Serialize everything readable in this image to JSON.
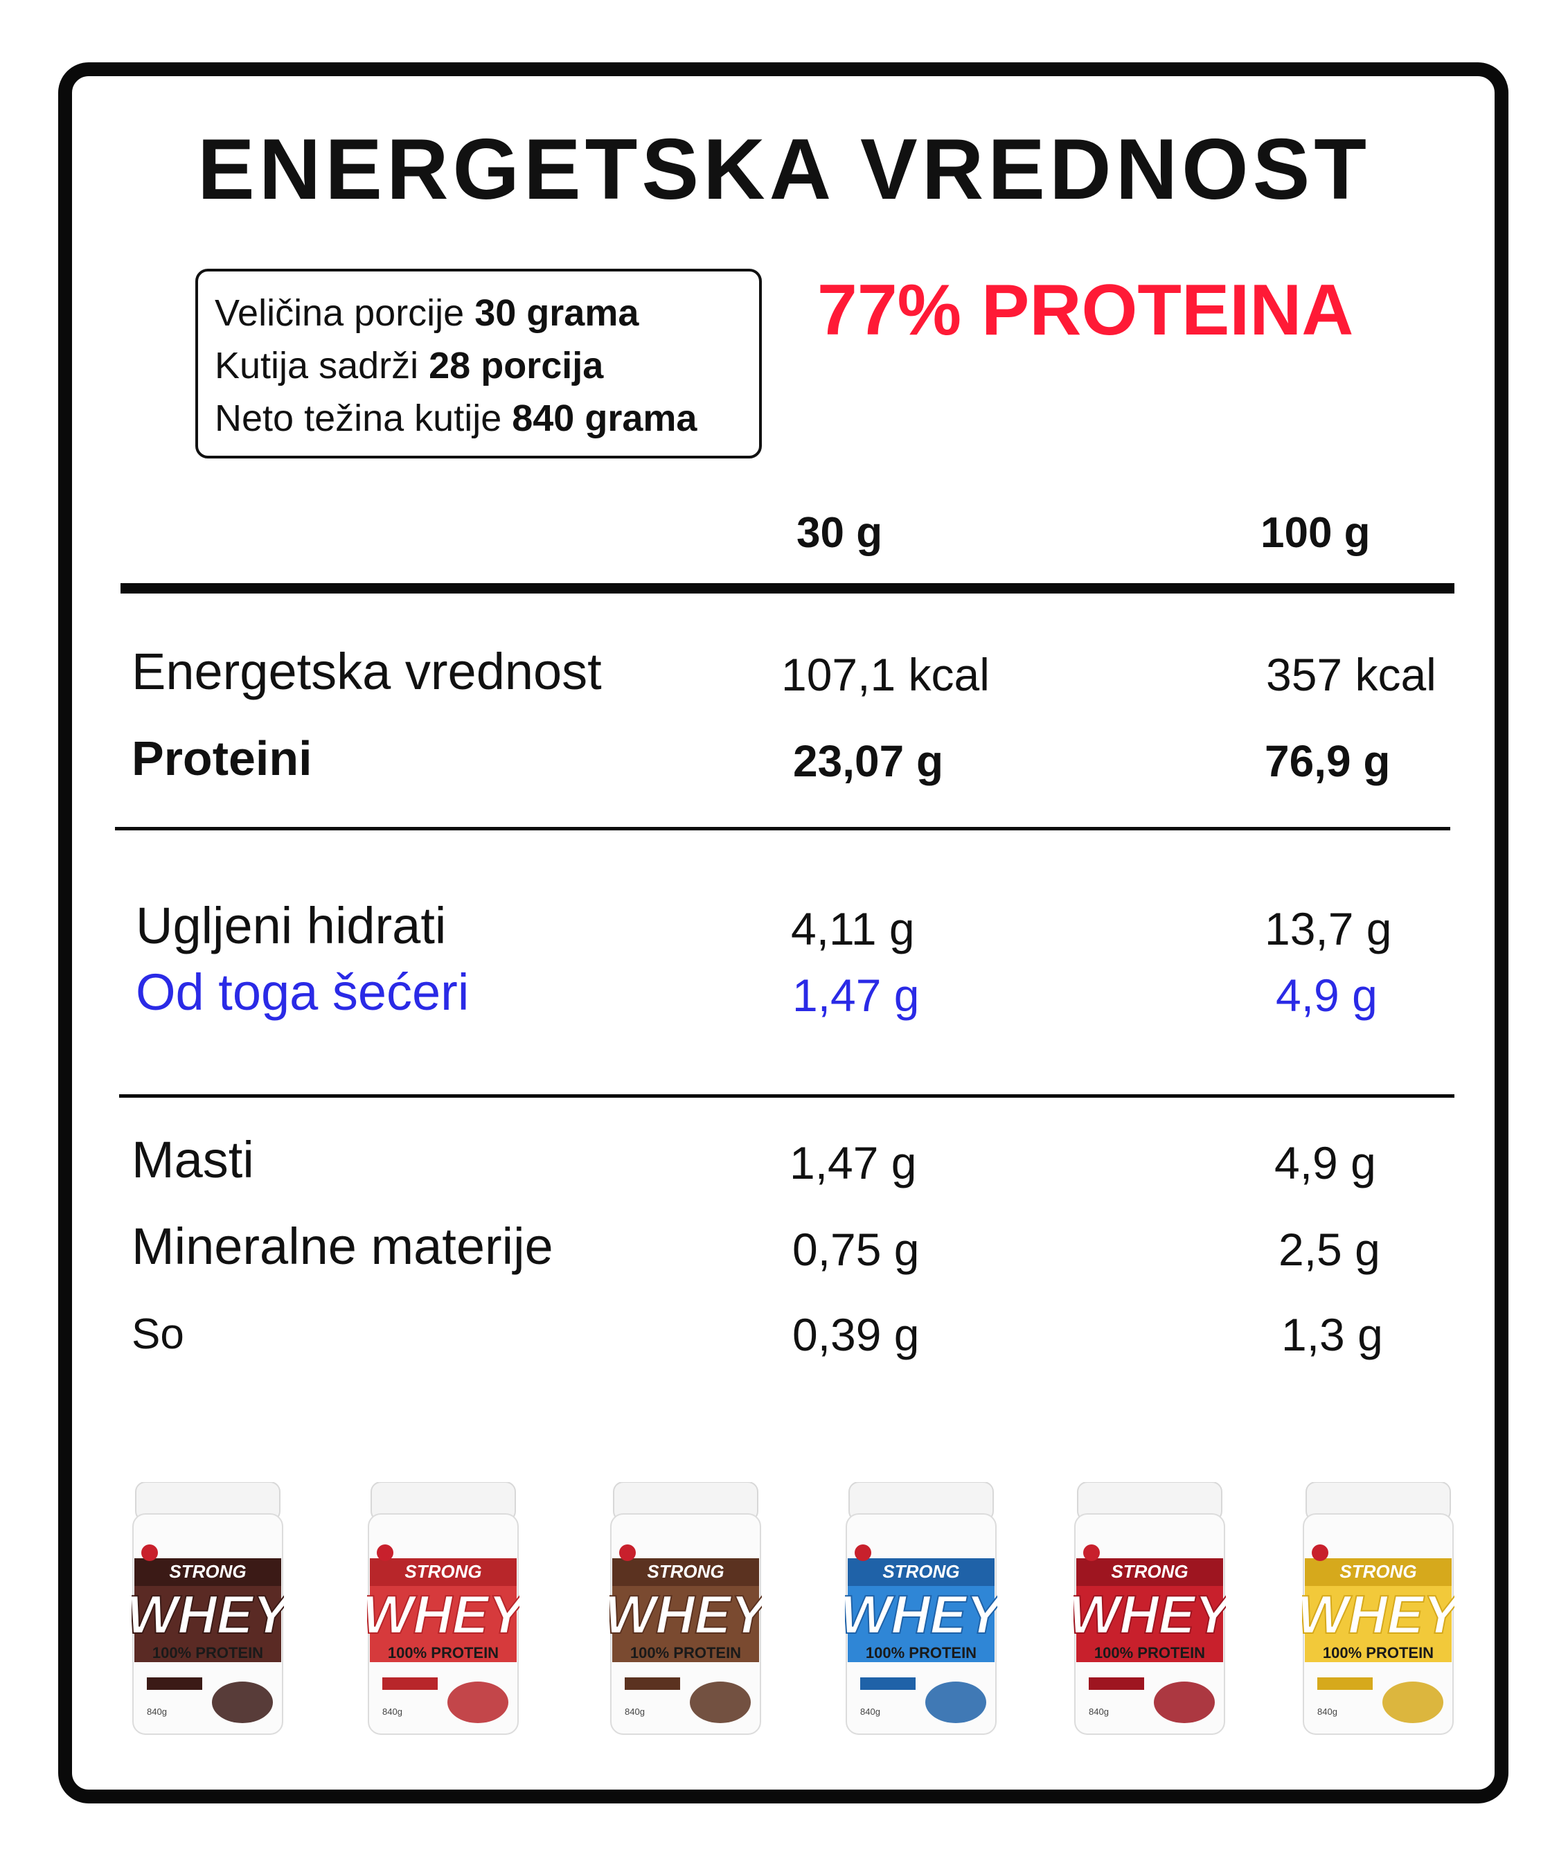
{
  "title": "ENERGETSKA VREDNOST",
  "serving_info": [
    {
      "label": "Veličina porcije ",
      "value": "30 grama"
    },
    {
      "label": "Kutija sadrži ",
      "value": "28 porcija"
    },
    {
      "label": "Neto težina kutije ",
      "value": "840 grama"
    }
  ],
  "protein_highlight": "77% PROTEINA",
  "columns": {
    "per_serving": "30 g",
    "per_100": "100 g"
  },
  "rows": [
    {
      "name": "Energetska vrednost",
      "serving": "107,1 kcal",
      "per100": "357 kcal"
    },
    {
      "name": "Proteini",
      "serving": "23,07 g",
      "per100": "76,9 g"
    },
    {
      "name": "Ugljeni hidrati",
      "serving": "4,11 g",
      "per100": "13,7 g"
    },
    {
      "name": "Od toga šećeri",
      "serving": "1,47 g",
      "per100": "4,9 g"
    },
    {
      "name": "Masti",
      "serving": "1,47 g",
      "per100": "4,9 g"
    },
    {
      "name": "Mineralne materije",
      "serving": "0,75 g",
      "per100": "2,5 g"
    },
    {
      "name": "So",
      "serving": "0,39 g",
      "per100": "1,3 g"
    }
  ],
  "products": [
    {
      "brand": "STRONG",
      "name": "WHEY",
      "sub": "100% PROTEIN",
      "weight": "840g",
      "label_color": "#5a2a24",
      "accent": "#3b1a16"
    },
    {
      "brand": "STRONG",
      "name": "WHEY",
      "sub": "100% PROTEIN",
      "weight": "840g",
      "label_color": "#d63a3c",
      "accent": "#b8262a"
    },
    {
      "brand": "STRONG",
      "name": "WHEY",
      "sub": "100% PROTEIN",
      "weight": "840g",
      "label_color": "#7a4a30",
      "accent": "#5b3220"
    },
    {
      "brand": "STRONG",
      "name": "WHEY",
      "sub": "100% PROTEIN",
      "weight": "840g",
      "label_color": "#2f86d6",
      "accent": "#1f62a8"
    },
    {
      "brand": "STRONG",
      "name": "WHEY",
      "sub": "100% PROTEIN",
      "weight": "840g",
      "label_color": "#c8202c",
      "accent": "#9e1520"
    },
    {
      "brand": "STRONG",
      "name": "WHEY",
      "sub": "100% PROTEIN",
      "weight": "840g",
      "label_color": "#f2c93a",
      "accent": "#d6a91c"
    }
  ],
  "colors": {
    "highlight_red": "#ff1a36",
    "sugar_blue": "#2a2ae6"
  }
}
